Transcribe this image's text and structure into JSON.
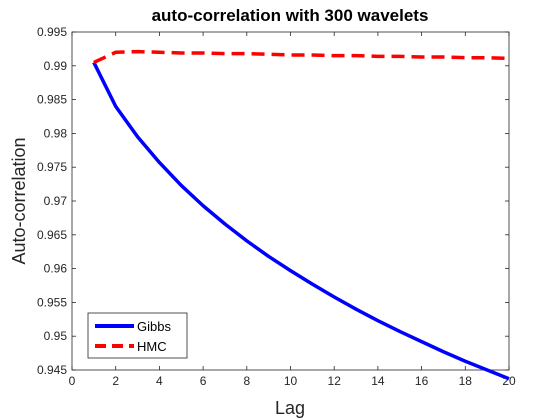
{
  "chart_data": {
    "type": "line",
    "title": "auto-correlation with 300 wavelets",
    "xlabel": "Lag",
    "ylabel": "Auto-correlation",
    "xlim": [
      0,
      20
    ],
    "ylim": [
      0.945,
      0.995
    ],
    "xticks": [
      "0",
      "2",
      "4",
      "6",
      "8",
      "10",
      "12",
      "14",
      "16",
      "18",
      "20"
    ],
    "yticks": [
      "0.945",
      "0.95",
      "0.955",
      "0.96",
      "0.965",
      "0.97",
      "0.975",
      "0.98",
      "0.985",
      "0.99",
      "0.995"
    ],
    "grid": false,
    "legend_position": "bottom-left",
    "x": [
      1,
      2,
      3,
      4,
      5,
      6,
      7,
      8,
      9,
      10,
      11,
      12,
      13,
      14,
      15,
      16,
      17,
      18,
      19,
      20
    ],
    "series": [
      {
        "name": "Gibbs",
        "color": "#0000ff",
        "style": "solid",
        "values": [
          0.9905,
          0.984,
          0.9795,
          0.9757,
          0.9723,
          0.9693,
          0.9666,
          0.9641,
          0.9618,
          0.9597,
          0.9577,
          0.9558,
          0.954,
          0.9523,
          0.9507,
          0.9492,
          0.9477,
          0.9463,
          0.945,
          0.9437
        ]
      },
      {
        "name": "HMC",
        "color": "#ff0000",
        "style": "dashed",
        "values": [
          0.9905,
          0.992,
          0.9921,
          0.992,
          0.9919,
          0.9919,
          0.9918,
          0.9918,
          0.9917,
          0.9916,
          0.9916,
          0.9915,
          0.9915,
          0.9914,
          0.9914,
          0.9913,
          0.9913,
          0.9912,
          0.9912,
          0.9911
        ]
      }
    ]
  }
}
